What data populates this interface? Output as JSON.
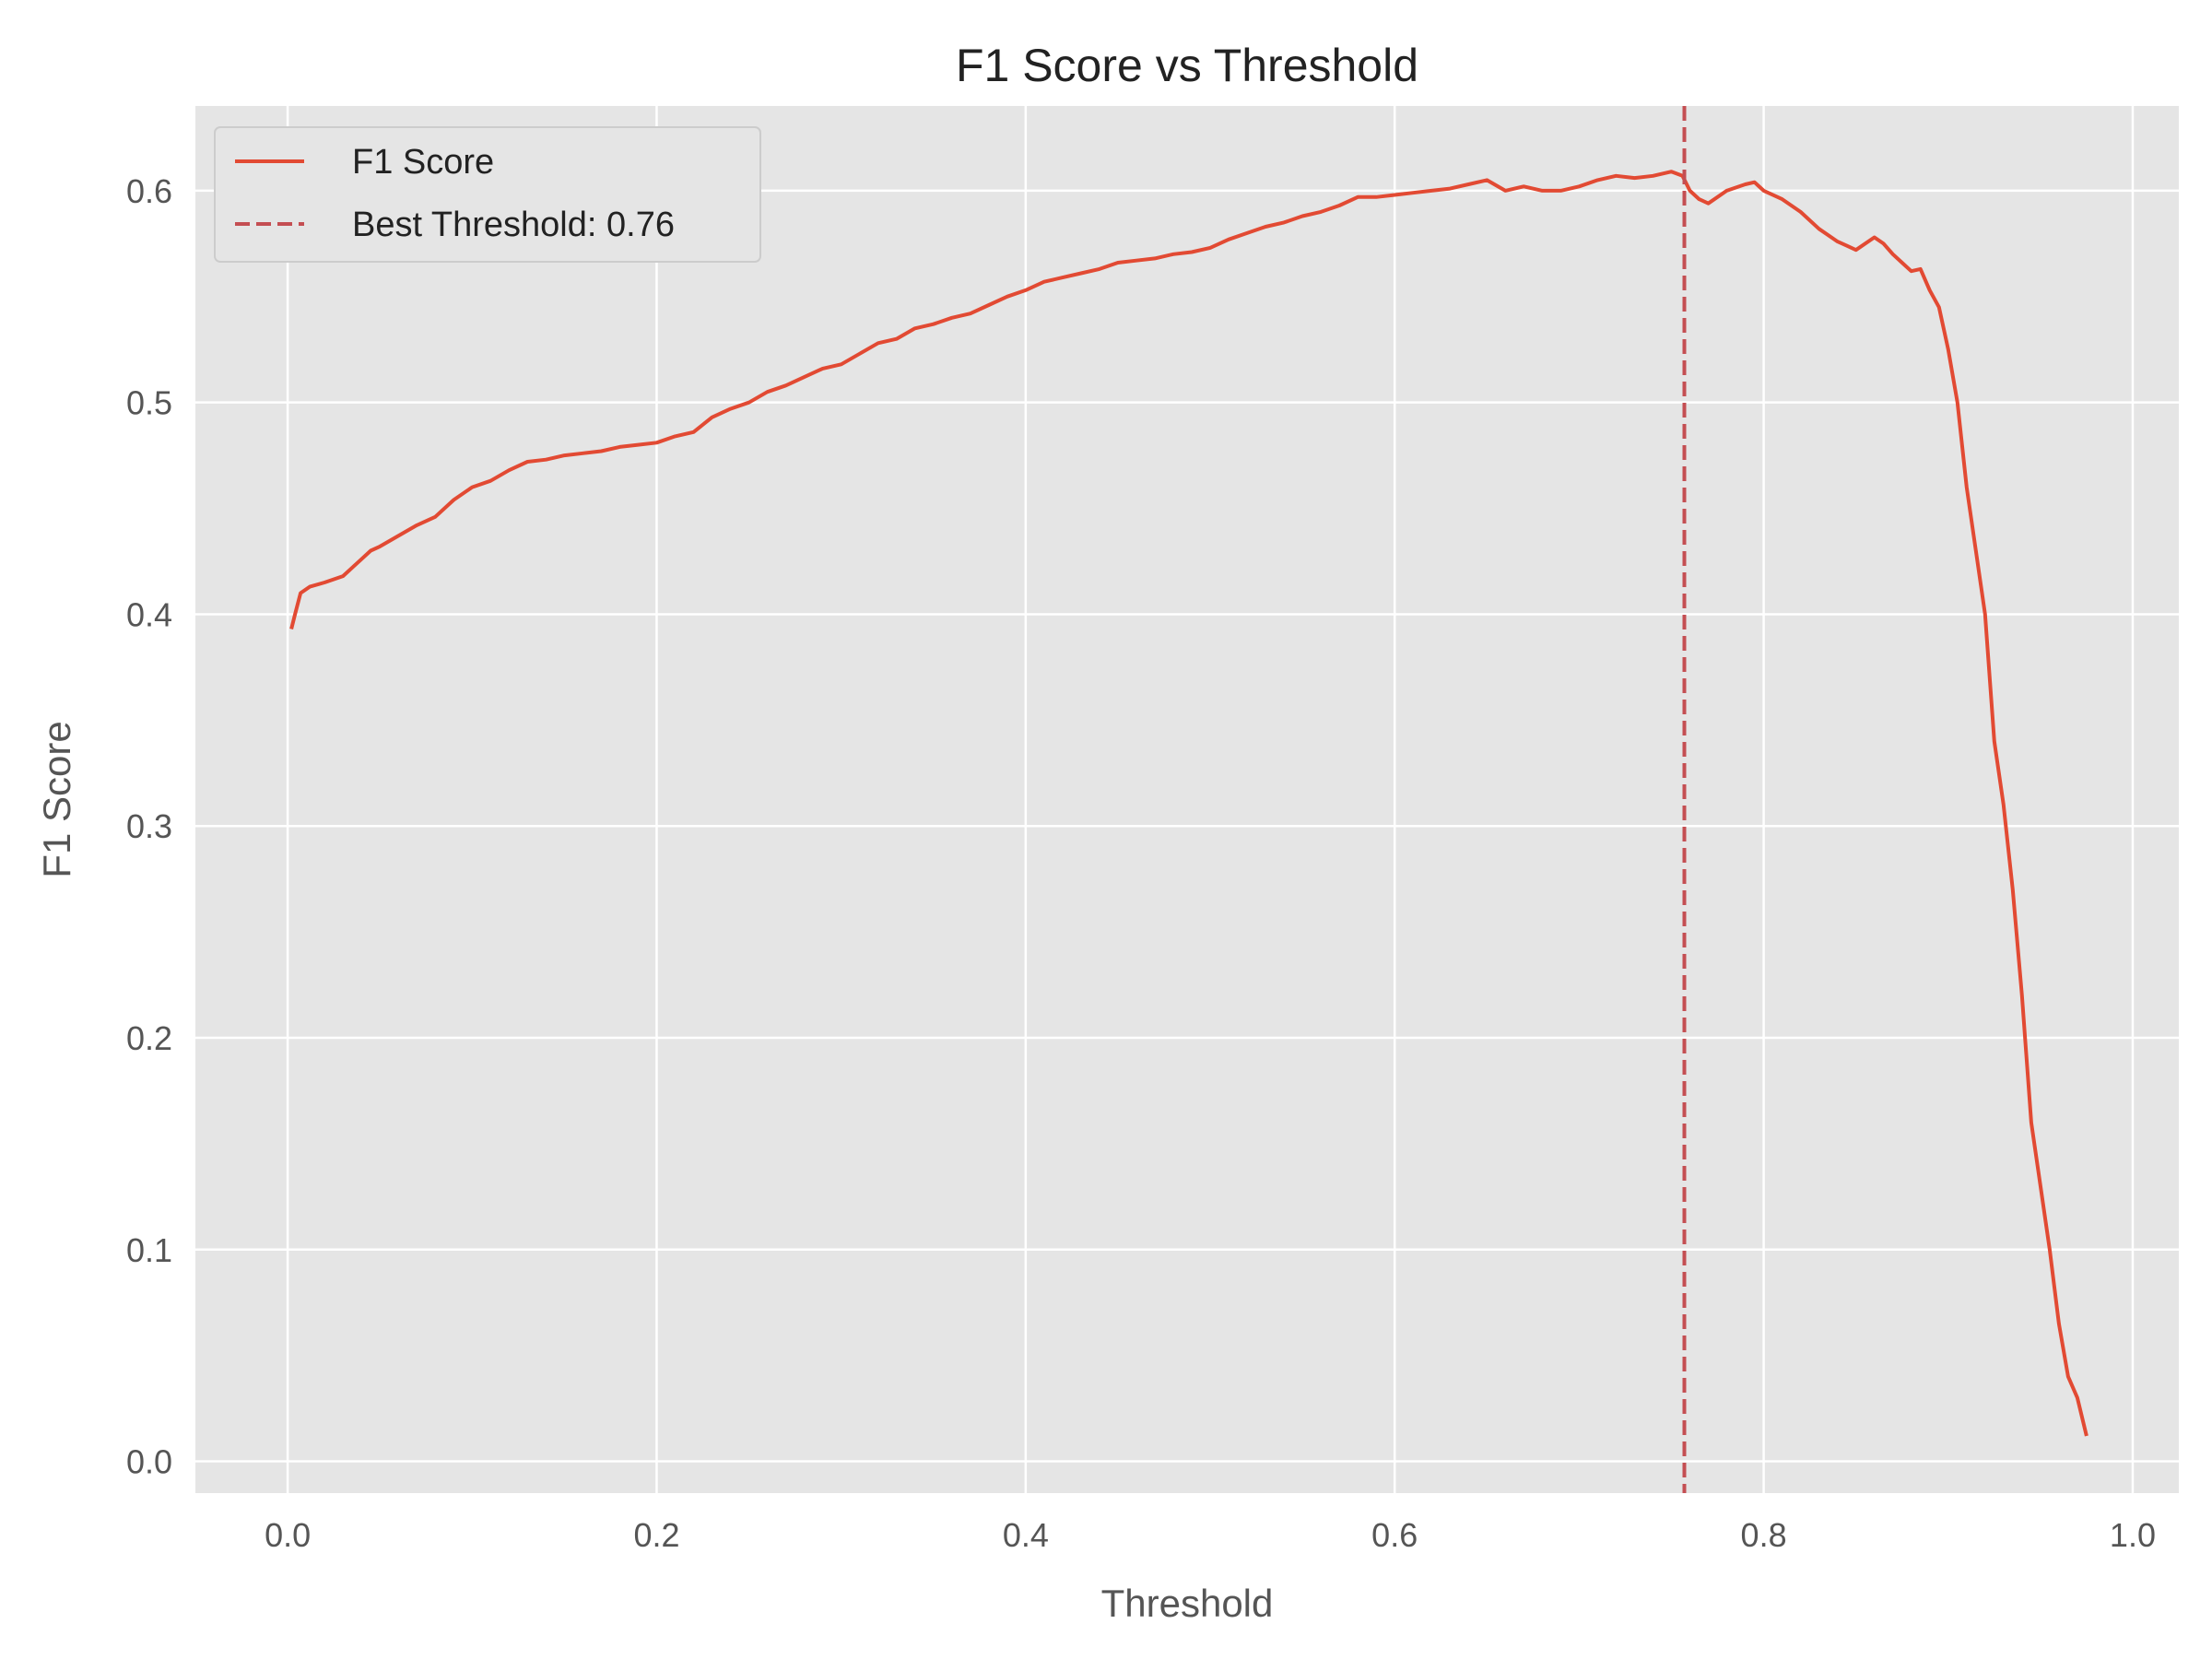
{
  "chart_data": {
    "type": "line",
    "title": "F1 Score vs Threshold",
    "xlabel": "Threshold",
    "ylabel": "F1 Score",
    "xlim": [
      -0.05,
      1.025
    ],
    "ylim": [
      -0.015,
      0.64
    ],
    "xticks": [
      0.0,
      0.2,
      0.4,
      0.6,
      0.8,
      1.0
    ],
    "xtick_labels": [
      "0.0",
      "0.2",
      "0.4",
      "0.6",
      "0.8",
      "1.0"
    ],
    "yticks": [
      0.0,
      0.1,
      0.2,
      0.3,
      0.4,
      0.5,
      0.6
    ],
    "ytick_labels": [
      "0.0",
      "0.1",
      "0.2",
      "0.3",
      "0.4",
      "0.5",
      "0.6"
    ],
    "grid": true,
    "legend_position": "top-left",
    "background_color": "#e5e5e5",
    "series": [
      {
        "name": "F1 Score",
        "color": "#e24a33",
        "style": "solid",
        "x": [
          0.002,
          0.004,
          0.007,
          0.012,
          0.02,
          0.03,
          0.04,
          0.045,
          0.05,
          0.06,
          0.07,
          0.08,
          0.09,
          0.1,
          0.11,
          0.12,
          0.13,
          0.14,
          0.15,
          0.16,
          0.17,
          0.18,
          0.19,
          0.2,
          0.21,
          0.22,
          0.23,
          0.24,
          0.25,
          0.26,
          0.27,
          0.28,
          0.29,
          0.3,
          0.31,
          0.32,
          0.33,
          0.34,
          0.35,
          0.36,
          0.37,
          0.38,
          0.39,
          0.4,
          0.41,
          0.42,
          0.43,
          0.44,
          0.45,
          0.46,
          0.47,
          0.48,
          0.49,
          0.5,
          0.51,
          0.52,
          0.53,
          0.54,
          0.55,
          0.56,
          0.57,
          0.58,
          0.59,
          0.6,
          0.61,
          0.62,
          0.63,
          0.64,
          0.65,
          0.66,
          0.67,
          0.68,
          0.69,
          0.7,
          0.71,
          0.72,
          0.73,
          0.74,
          0.75,
          0.756,
          0.76,
          0.765,
          0.77,
          0.78,
          0.79,
          0.795,
          0.8,
          0.81,
          0.82,
          0.83,
          0.84,
          0.845,
          0.85,
          0.86,
          0.865,
          0.87,
          0.875,
          0.88,
          0.885,
          0.89,
          0.895,
          0.9,
          0.905,
          0.91,
          0.915,
          0.92,
          0.925,
          0.93,
          0.935,
          0.94,
          0.945,
          0.95,
          0.955,
          0.96,
          0.965,
          0.97,
          0.975
        ],
        "y": [
          0.393,
          0.4,
          0.41,
          0.413,
          0.415,
          0.418,
          0.426,
          0.43,
          0.432,
          0.437,
          0.442,
          0.446,
          0.454,
          0.46,
          0.463,
          0.468,
          0.472,
          0.473,
          0.475,
          0.476,
          0.477,
          0.479,
          0.48,
          0.481,
          0.484,
          0.486,
          0.493,
          0.497,
          0.5,
          0.505,
          0.508,
          0.512,
          0.516,
          0.518,
          0.523,
          0.528,
          0.53,
          0.535,
          0.537,
          0.54,
          0.542,
          0.546,
          0.55,
          0.553,
          0.557,
          0.559,
          0.561,
          0.563,
          0.566,
          0.567,
          0.568,
          0.57,
          0.571,
          0.573,
          0.577,
          0.58,
          0.583,
          0.585,
          0.588,
          0.59,
          0.593,
          0.597,
          0.597,
          0.598,
          0.599,
          0.6,
          0.601,
          0.603,
          0.605,
          0.6,
          0.602,
          0.6,
          0.6,
          0.602,
          0.605,
          0.607,
          0.606,
          0.607,
          0.609,
          0.607,
          0.6,
          0.596,
          0.594,
          0.6,
          0.603,
          0.604,
          0.6,
          0.596,
          0.59,
          0.582,
          0.576,
          0.574,
          0.572,
          0.578,
          0.575,
          0.57,
          0.566,
          0.562,
          0.563,
          0.553,
          0.545,
          0.525,
          0.5,
          0.46,
          0.43,
          0.4,
          0.34,
          0.31,
          0.27,
          0.22,
          0.16,
          0.13,
          0.1,
          0.065,
          0.04,
          0.03,
          0.012
        ]
      },
      {
        "name": "Best Threshold: 0.76",
        "color": "#c44e52",
        "style": "dashed",
        "x_value": 0.757
      }
    ]
  }
}
